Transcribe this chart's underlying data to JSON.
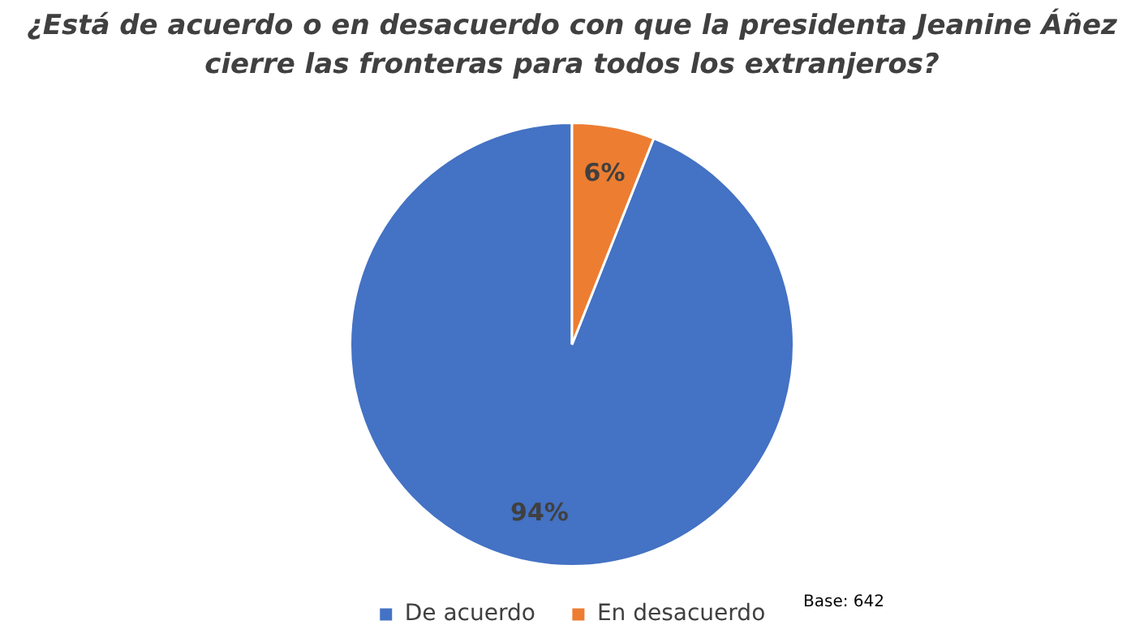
{
  "chart_data": {
    "type": "pie",
    "title": "¿Está de acuerdo o en desacuerdo con que la presidenta Jeanine Áñez cierre las fronteras para todos los extranjeros?",
    "categories": [
      "De acuerdo",
      "En desacuerdo"
    ],
    "values": [
      94,
      6
    ],
    "value_labels": [
      "94%",
      "6%"
    ],
    "colors": [
      "#4472c4",
      "#ed7d31"
    ],
    "legend": "bottom",
    "annotations": [
      "Base: 642"
    ]
  }
}
